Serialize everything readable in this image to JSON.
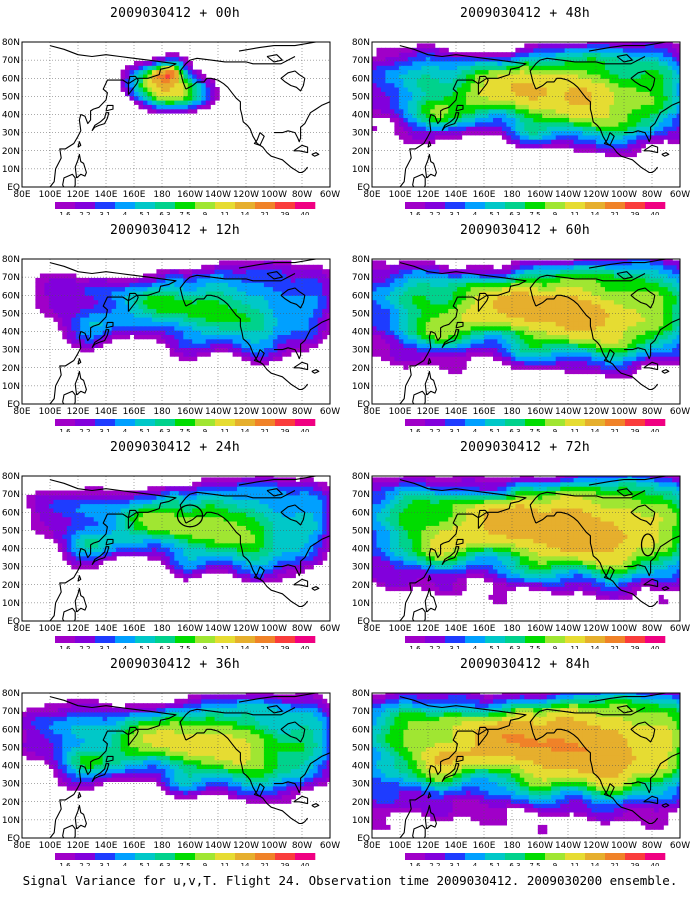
{
  "figure": {
    "caption": "Signal Variance for u,v,T. Flight 24. Observation time 2009030412. 2009030200 ensemble."
  },
  "axes": {
    "lon_labels": [
      "80E",
      "100E",
      "120E",
      "140E",
      "160E",
      "180",
      "160W",
      "140W",
      "120W",
      "100W",
      "80W",
      "60W"
    ],
    "lat_labels": [
      "EQ",
      "10N",
      "20N",
      "30N",
      "40N",
      "50N",
      "60N",
      "70N",
      "80N"
    ]
  },
  "colorbar": {
    "levels": [
      "1.6",
      "2.2",
      "3.1",
      "4",
      "5.1",
      "6.3",
      "7.5",
      "9",
      "11",
      "14",
      "21",
      "29",
      "40"
    ],
    "colors": [
      "#a000c8",
      "#8200dc",
      "#1e3cff",
      "#00a0ff",
      "#00c8c8",
      "#00d28c",
      "#00dc00",
      "#a0e632",
      "#e6dc32",
      "#e6af2d",
      "#f08228",
      "#fa3c3c",
      "#f00082"
    ]
  },
  "panels": [
    {
      "title": "2009030412 + 00h",
      "level": 0,
      "circle": false
    },
    {
      "title": "2009030412 + 48h",
      "level": 4,
      "circle": false
    },
    {
      "title": "2009030412 + 12h",
      "level": 1,
      "circle": false
    },
    {
      "title": "2009030412 + 60h",
      "level": 5,
      "circle": false
    },
    {
      "title": "2009030412 + 24h",
      "level": 2,
      "circle": true
    },
    {
      "title": "2009030412 + 72h",
      "level": 6,
      "circle": true
    },
    {
      "title": "2009030412 + 36h",
      "level": 3,
      "circle": false
    },
    {
      "title": "2009030412 + 84h",
      "level": 7,
      "circle": false
    }
  ]
}
